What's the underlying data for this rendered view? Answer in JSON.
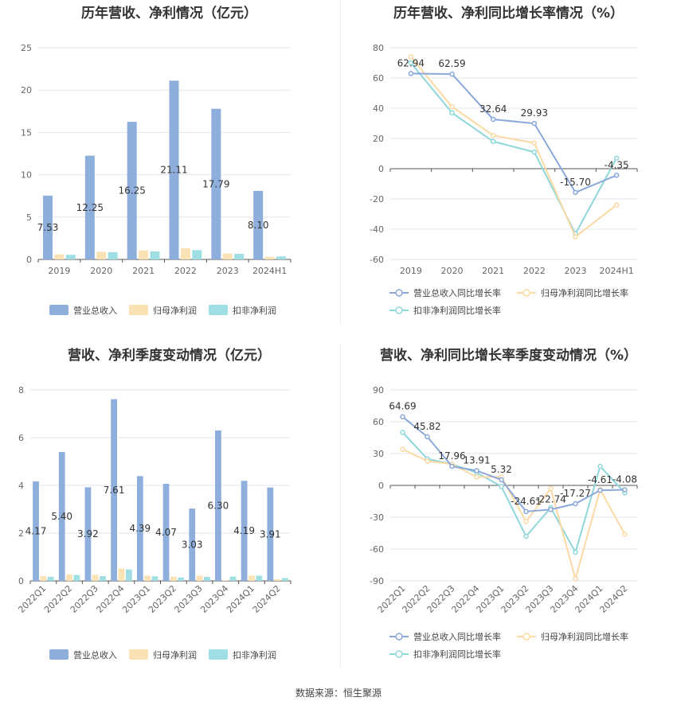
{
  "source_label": "数据来源：恒生聚源",
  "colors": {
    "revenue": "#8eaedb",
    "net_profit": "#fbe2b5",
    "deducted_profit": "#9fdfe3",
    "revenue_line": "#8aa8da",
    "net_profit_line": "#fbd9a3",
    "deducted_profit_line": "#8fd7db"
  },
  "chart_data": [
    {
      "id": "annual_amount",
      "type": "bar",
      "title": "历年营收、净利情况（亿元）",
      "categories": [
        "2019",
        "2020",
        "2021",
        "2022",
        "2023",
        "2024H1"
      ],
      "ylim": [
        0,
        25
      ],
      "yticks": [
        0,
        5,
        10,
        15,
        20,
        25
      ],
      "grid": true,
      "legend_position": "bottom",
      "series": [
        {
          "name": "营业总收入",
          "color": "#8eaedb",
          "values": [
            7.53,
            12.25,
            16.25,
            21.11,
            17.79,
            8.1
          ],
          "labels": [
            "7.53",
            "12.25",
            "16.25",
            "21.11",
            "17.79",
            "8.10"
          ]
        },
        {
          "name": "归母净利润",
          "color": "#fbe2b5",
          "values": [
            0.6,
            0.9,
            1.05,
            1.3,
            0.7,
            0.3
          ]
        },
        {
          "name": "扣非净利润",
          "color": "#9fdfe3",
          "values": [
            0.55,
            0.85,
            0.95,
            1.1,
            0.65,
            0.35
          ]
        }
      ]
    },
    {
      "id": "annual_growth",
      "type": "line",
      "title": "历年营收、净利同比增长率情况（%）",
      "categories": [
        "2019",
        "2020",
        "2021",
        "2022",
        "2023",
        "2024H1"
      ],
      "ylim": [
        -60,
        80
      ],
      "yticks": [
        -60,
        -40,
        -20,
        0,
        20,
        40,
        60,
        80
      ],
      "grid": true,
      "legend_position": "bottom",
      "series": [
        {
          "name": "营业总收入同比增长率",
          "color": "#8aa8da",
          "values": [
            62.94,
            62.59,
            32.64,
            29.93,
            -15.7,
            -4.35
          ],
          "labels": [
            "62.94",
            "62.59",
            "32.64",
            "29.93",
            "-15.70",
            "-4.35"
          ]
        },
        {
          "name": "归母净利润同比增长率",
          "color": "#fbd9a3",
          "values": [
            74,
            41,
            22,
            17,
            -45,
            -24
          ]
        },
        {
          "name": "扣非净利润同比增长率",
          "color": "#8fd7db",
          "values": [
            70,
            37,
            18,
            11,
            -43,
            7
          ]
        }
      ]
    },
    {
      "id": "quarterly_amount",
      "type": "bar",
      "title": "营收、净利季度变动情况（亿元）",
      "categories": [
        "2022Q1",
        "2022Q2",
        "2022Q3",
        "2022Q4",
        "2023Q1",
        "2023Q2",
        "2023Q3",
        "2023Q4",
        "2024Q1",
        "2024Q2"
      ],
      "ylim": [
        0,
        8
      ],
      "yticks": [
        0,
        2,
        4,
        6,
        8
      ],
      "grid": true,
      "legend_position": "bottom",
      "series": [
        {
          "name": "营业总收入",
          "color": "#8eaedb",
          "values": [
            4.17,
            5.4,
            3.92,
            7.61,
            4.39,
            4.07,
            3.03,
            6.3,
            4.19,
            3.91
          ],
          "labels": [
            "4.17",
            "5.40",
            "3.92",
            "7.61",
            "4.39",
            "4.07",
            "3.03",
            "6.30",
            "4.19",
            "3.91"
          ]
        },
        {
          "name": "归母净利润",
          "color": "#fbe2b5",
          "values": [
            0.2,
            0.27,
            0.25,
            0.52,
            0.22,
            0.17,
            0.22,
            0.03,
            0.22,
            0.07
          ]
        },
        {
          "name": "扣非净利润",
          "color": "#9fdfe3",
          "values": [
            0.17,
            0.25,
            0.2,
            0.48,
            0.19,
            0.14,
            0.17,
            0.18,
            0.22,
            0.12
          ]
        }
      ]
    },
    {
      "id": "quarterly_growth",
      "type": "line",
      "title": "营收、净利同比增长率季度变动情况（%）",
      "categories": [
        "2022Q1",
        "2022Q2",
        "2022Q3",
        "2022Q4",
        "2023Q1",
        "2023Q2",
        "2023Q3",
        "2023Q4",
        "2024Q1",
        "2024Q2"
      ],
      "ylim": [
        -90,
        90
      ],
      "yticks": [
        -90,
        -60,
        -30,
        0,
        30,
        60,
        90
      ],
      "grid": true,
      "legend_position": "bottom",
      "series": [
        {
          "name": "营业总收入同比增长率",
          "color": "#8aa8da",
          "values": [
            64.69,
            45.82,
            17.96,
            13.91,
            5.32,
            -24.61,
            -22.74,
            -17.27,
            -4.61,
            -4.08
          ],
          "labels": [
            "64.69",
            "45.82",
            "17.96",
            "13.91",
            "5.32",
            "-24.61",
            "-22.74",
            "-17.27",
            "-4.61",
            "-4.08"
          ]
        },
        {
          "name": "归母净利润同比增长率",
          "color": "#fbd9a3",
          "values": [
            34,
            23,
            20,
            8,
            8,
            -34,
            -3,
            -88,
            -4,
            -46
          ]
        },
        {
          "name": "扣非净利润同比增长率",
          "color": "#8fd7db",
          "values": [
            50,
            25,
            20,
            12,
            -1,
            -48,
            -21,
            -63,
            18,
            -7
          ]
        }
      ]
    }
  ]
}
